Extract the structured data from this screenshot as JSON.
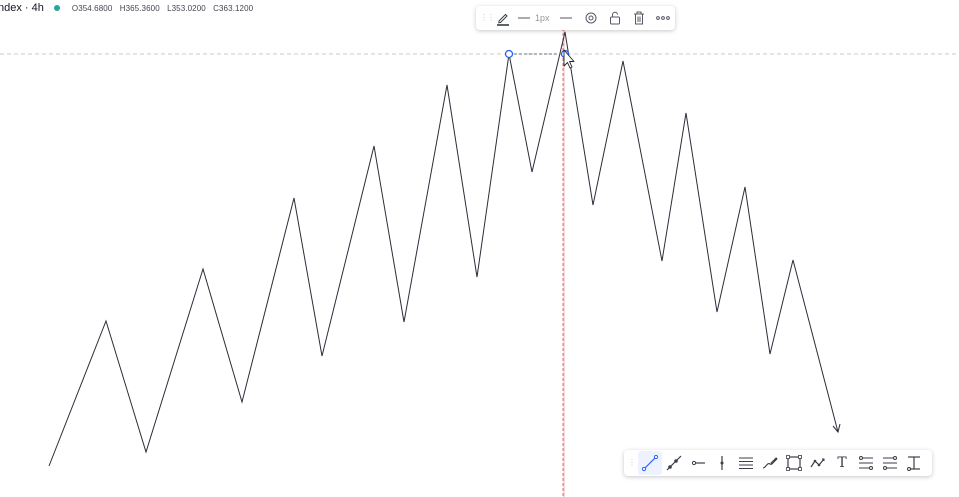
{
  "header": {
    "symbol": "ndex · 4h",
    "open": "O354.6800",
    "high": "H365.3600",
    "low": "L353.0200",
    "close": "C363.1200",
    "status_color": "#26a69a"
  },
  "top_toolbar": {
    "line_width_label": "1px",
    "icons": [
      "pencil-icon",
      "line-style-icon",
      "line-end-icon",
      "settings-icon",
      "unlock-icon",
      "trash-icon",
      "more-icon"
    ]
  },
  "bottom_toolbar": {
    "tools": [
      "trend-line-icon",
      "ray-icon",
      "horizontal-ray-icon",
      "vertical-line-icon",
      "parallel-channel-icon",
      "brush-icon",
      "rectangle-icon",
      "path-icon",
      "text-icon",
      "price-range-icon",
      "date-range-icon",
      "measure-icon"
    ],
    "text_tool_label": "T"
  },
  "colors": {
    "zigzag": "#2a2e39",
    "crosshair": "#e57373",
    "selected_handle": "#2962ff",
    "guide": "#c8cbd3"
  }
}
